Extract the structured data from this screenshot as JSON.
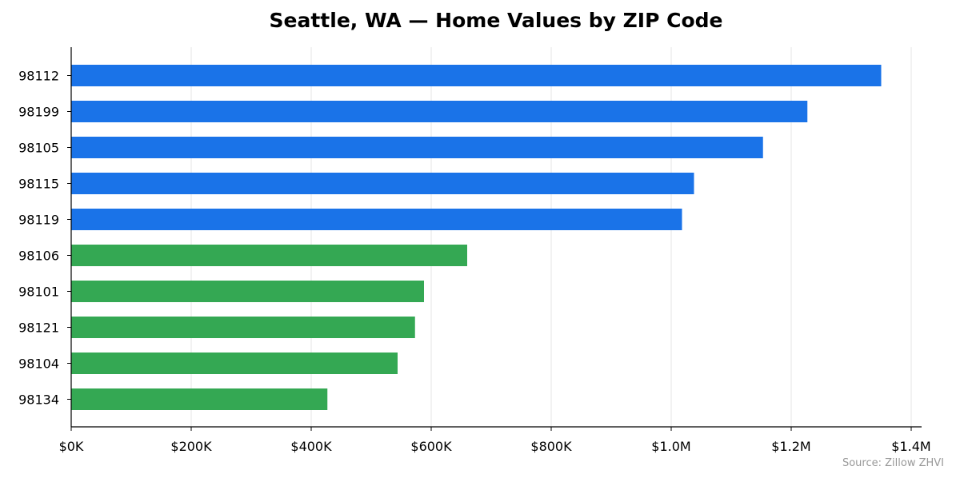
{
  "chart_data": {
    "type": "bar",
    "orientation": "horizontal",
    "title": "Seattle, WA — Home Values by ZIP Code",
    "xlabel": "",
    "ylabel": "",
    "xlim": [
      0,
      1420000
    ],
    "x_ticks": [
      {
        "value": 0,
        "label": "$0K"
      },
      {
        "value": 200000,
        "label": "$200K"
      },
      {
        "value": 400000,
        "label": "$400K"
      },
      {
        "value": 600000,
        "label": "$600K"
      },
      {
        "value": 800000,
        "label": "$800K"
      },
      {
        "value": 1000000,
        "label": "$1.0M"
      },
      {
        "value": 1200000,
        "label": "$1.2M"
      },
      {
        "value": 1400000,
        "label": "$1.4M"
      }
    ],
    "grid": "vertical",
    "categories": [
      "98112",
      "98199",
      "98105",
      "98115",
      "98119",
      "98106",
      "98101",
      "98121",
      "98104",
      "98134"
    ],
    "values": [
      1350000,
      1227000,
      1153000,
      1038000,
      1018000,
      660000,
      588000,
      573000,
      544000,
      427000
    ],
    "bar_colors": [
      "#1a73e8",
      "#1a73e8",
      "#1a73e8",
      "#1a73e8",
      "#1a73e8",
      "#34a853",
      "#34a853",
      "#34a853",
      "#34a853",
      "#34a853"
    ],
    "source": "Source: Zillow ZHVI"
  }
}
